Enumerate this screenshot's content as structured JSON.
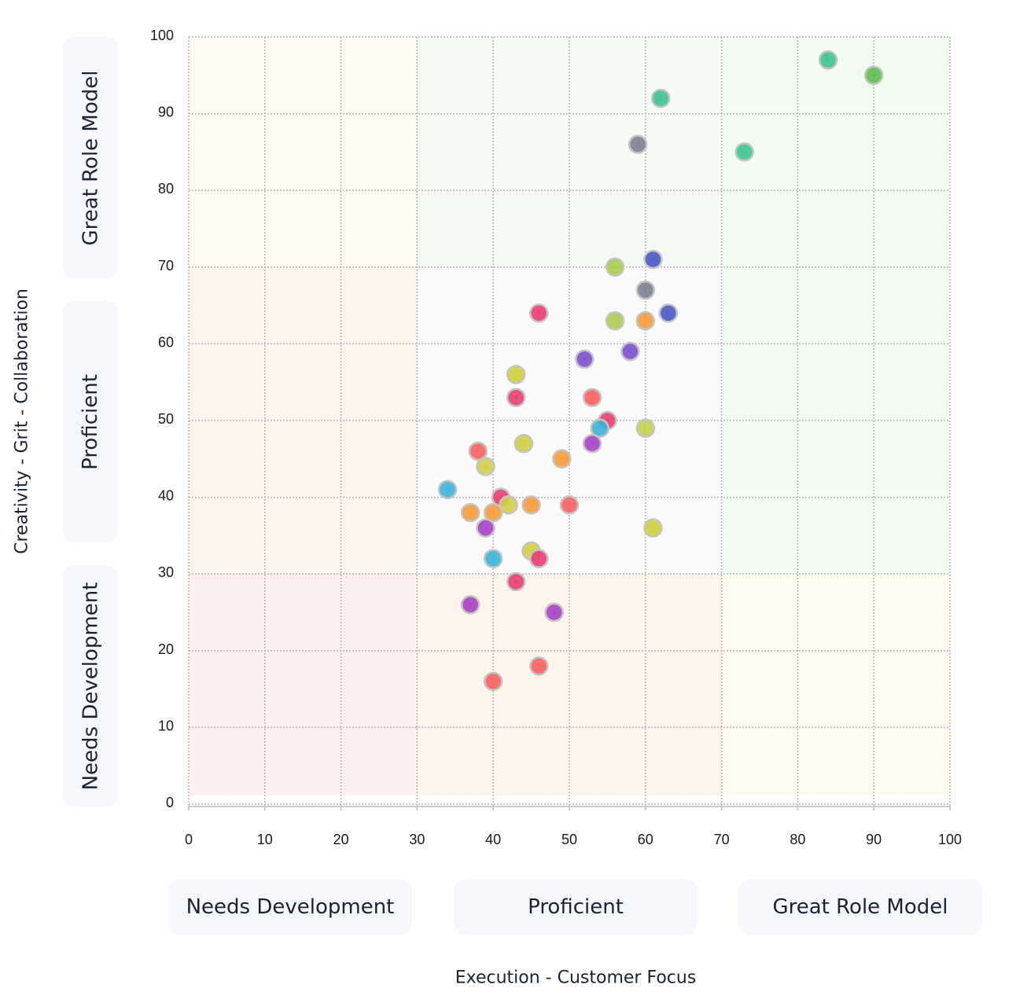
{
  "chart_data": {
    "type": "scatter",
    "xlabel": "Execution - Customer Focus",
    "ylabel": "Creativity - Grit - Collaboration",
    "xlim": [
      0,
      100
    ],
    "ylim": [
      0,
      100
    ],
    "x_ticks": [
      "0",
      "10",
      "20",
      "30",
      "40",
      "50",
      "60",
      "70",
      "80",
      "90",
      "100"
    ],
    "y_ticks": [
      "0",
      "10",
      "20",
      "30",
      "40",
      "50",
      "60",
      "70",
      "80",
      "90",
      "100"
    ],
    "grid": true,
    "x_bands": [
      "Needs Development",
      "Proficient",
      "Great Role Model"
    ],
    "y_bands": [
      "Great Role Model",
      "Proficient",
      "Needs Development"
    ],
    "band_thresholds": [
      30,
      70
    ],
    "zone_colors": {
      "r0c0": "#fdf0ef",
      "r0c1": "#fdf4ec",
      "r0c2": "#fffbee",
      "r1c0": "#fdf4ec",
      "r1c1": "#fafafa",
      "r1c2": "#f0fdf0",
      "r2c0": "#fffbee",
      "r2c1": "#f6faf4",
      "r2c2": "#f0fdf0"
    },
    "points": [
      {
        "x": 84,
        "y": 97,
        "color": "#3cc48e"
      },
      {
        "x": 90,
        "y": 95,
        "color": "#5cbf4f"
      },
      {
        "x": 62,
        "y": 92,
        "color": "#3cc48e"
      },
      {
        "x": 59,
        "y": 86,
        "color": "#7b8190"
      },
      {
        "x": 73,
        "y": 85,
        "color": "#3cc48e"
      },
      {
        "x": 56,
        "y": 70,
        "color": "#a9cc4a"
      },
      {
        "x": 61,
        "y": 71,
        "color": "#4957c4"
      },
      {
        "x": 60,
        "y": 67,
        "color": "#7b8190"
      },
      {
        "x": 46,
        "y": 64,
        "color": "#e83e70"
      },
      {
        "x": 56,
        "y": 63,
        "color": "#a9cc4a"
      },
      {
        "x": 60,
        "y": 63,
        "color": "#f79a36"
      },
      {
        "x": 63,
        "y": 64,
        "color": "#4957c4"
      },
      {
        "x": 52,
        "y": 58,
        "color": "#7b4fcc"
      },
      {
        "x": 58,
        "y": 59,
        "color": "#7b4fcc"
      },
      {
        "x": 43,
        "y": 56,
        "color": "#cdd03a"
      },
      {
        "x": 43,
        "y": 53,
        "color": "#e83e70"
      },
      {
        "x": 53,
        "y": 53,
        "color": "#fa6060"
      },
      {
        "x": 55,
        "y": 50,
        "color": "#e83e70"
      },
      {
        "x": 54,
        "y": 49,
        "color": "#3ab5d8"
      },
      {
        "x": 60,
        "y": 49,
        "color": "#c2d04a"
      },
      {
        "x": 38,
        "y": 46,
        "color": "#fa6060"
      },
      {
        "x": 44,
        "y": 47,
        "color": "#cdd03a"
      },
      {
        "x": 39,
        "y": 44,
        "color": "#d2cf48"
      },
      {
        "x": 49,
        "y": 45,
        "color": "#f79a36"
      },
      {
        "x": 53,
        "y": 47,
        "color": "#a640c8"
      },
      {
        "x": 34,
        "y": 41,
        "color": "#3ab5d8"
      },
      {
        "x": 41,
        "y": 40,
        "color": "#e83e70"
      },
      {
        "x": 37,
        "y": 38,
        "color": "#f79a36"
      },
      {
        "x": 40,
        "y": 38,
        "color": "#f79a36"
      },
      {
        "x": 42,
        "y": 39,
        "color": "#d2cf48"
      },
      {
        "x": 45,
        "y": 39,
        "color": "#f79a36"
      },
      {
        "x": 50,
        "y": 39,
        "color": "#fa6060"
      },
      {
        "x": 39,
        "y": 36,
        "color": "#a640c8"
      },
      {
        "x": 61,
        "y": 36,
        "color": "#cdd03a"
      },
      {
        "x": 40,
        "y": 32,
        "color": "#3ab5d8"
      },
      {
        "x": 45,
        "y": 33,
        "color": "#cdd03a"
      },
      {
        "x": 46,
        "y": 32,
        "color": "#e83e70"
      },
      {
        "x": 43,
        "y": 29,
        "color": "#e83e70"
      },
      {
        "x": 37,
        "y": 26,
        "color": "#a640c8"
      },
      {
        "x": 48,
        "y": 25,
        "color": "#a640c8"
      },
      {
        "x": 46,
        "y": 18,
        "color": "#fa6060"
      },
      {
        "x": 40,
        "y": 16,
        "color": "#fa6060"
      }
    ]
  }
}
